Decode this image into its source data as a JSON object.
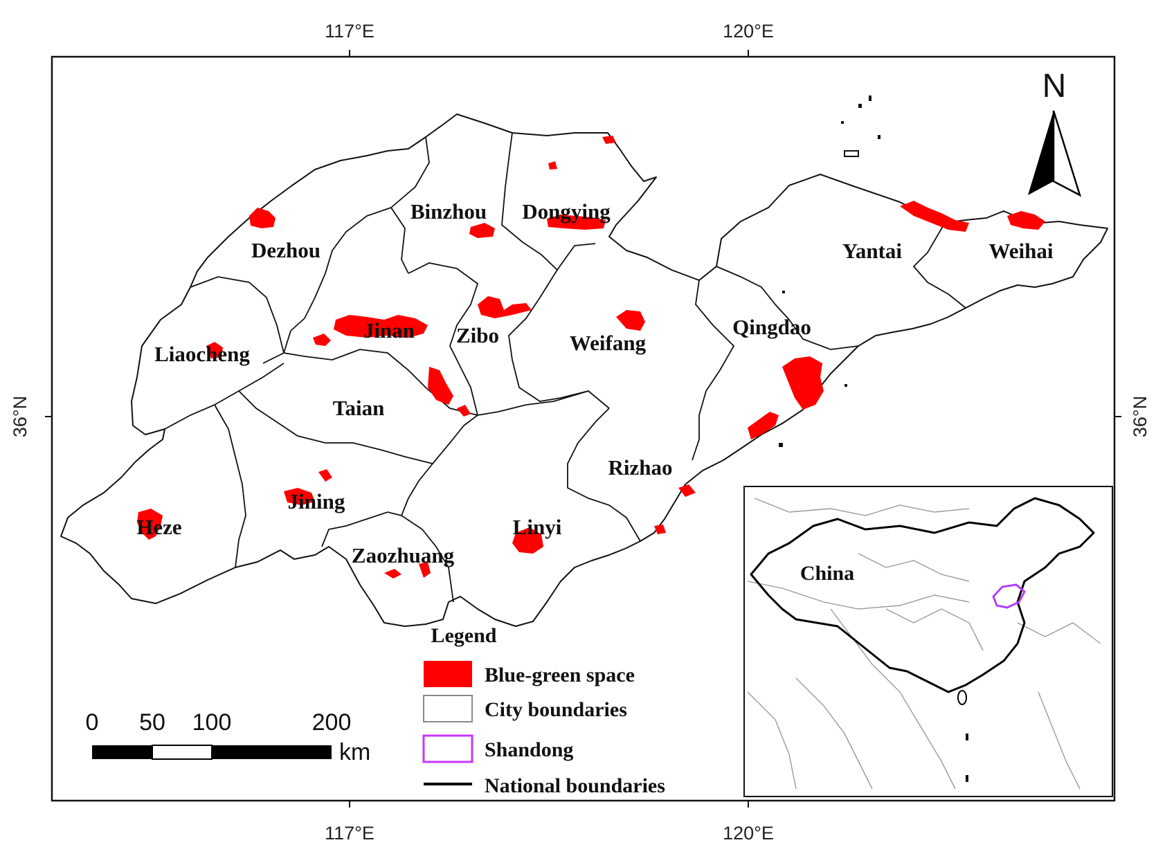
{
  "coordinates": {
    "top_left": "117°E",
    "top_right": "120°E",
    "bottom_left": "117°E",
    "bottom_right": "120°E",
    "left": "36°N",
    "right": "36°N"
  },
  "north_arrow": {
    "label": "N"
  },
  "cities": [
    "Dezhou",
    "Binzhou",
    "Dongying",
    "Liaocheng",
    "Jinan",
    "Zibo",
    "Weifang",
    "Yantai",
    "Weihai",
    "Qingdao",
    "Taian",
    "Rizhao",
    "Jining",
    "Heze",
    "Linyi",
    "Zaozhuang"
  ],
  "legend": {
    "title": "Legend",
    "items": [
      {
        "label": "Blue-green space",
        "color": "#ff0000"
      },
      {
        "label": "City boundaries",
        "color": "#ffffff"
      },
      {
        "label": "Shandong",
        "color": "#cc33ff"
      },
      {
        "label": "National boundaries",
        "color": "#000000"
      }
    ]
  },
  "scale_bar": {
    "ticks": [
      "0",
      "50",
      "100",
      "200"
    ],
    "unit": "km"
  },
  "inset": {
    "label": "China"
  }
}
